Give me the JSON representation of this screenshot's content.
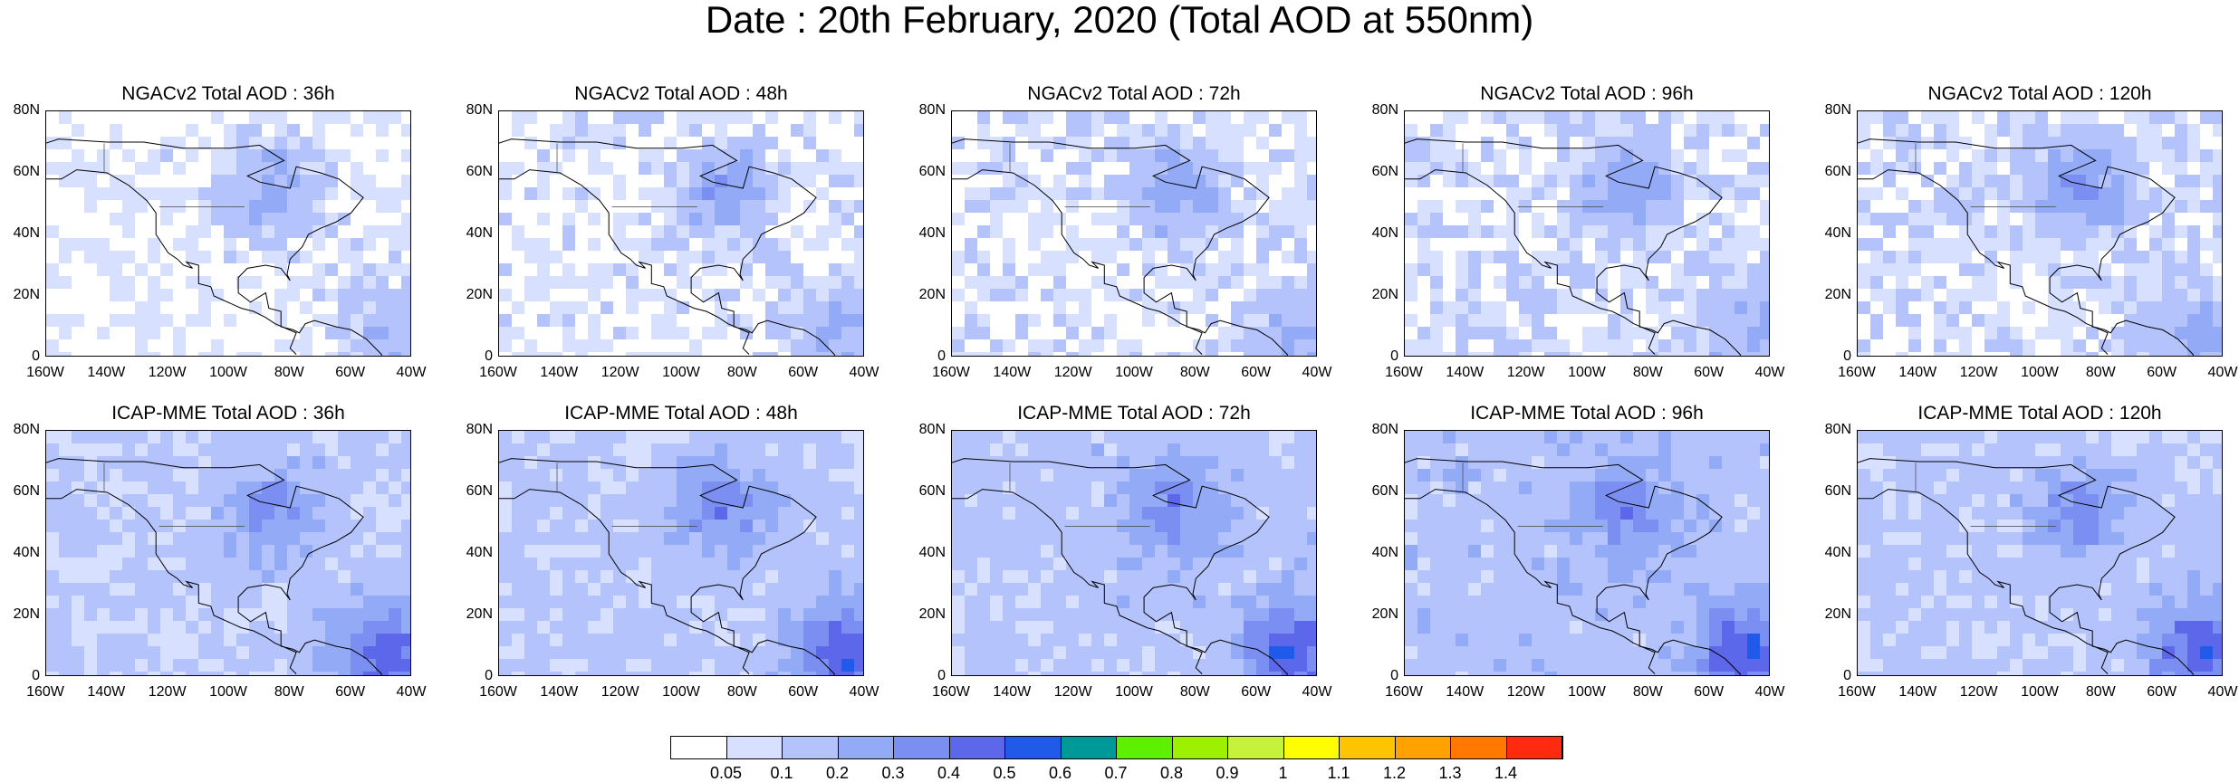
{
  "title": "Date : 20th February, 2020 (Total AOD at 550nm)",
  "panels": [
    {
      "title": "NGACv2 Total AOD : 36h",
      "model": "NGACv2",
      "lead": "36h",
      "bg": 0.04
    },
    {
      "title": "NGACv2 Total AOD : 48h",
      "model": "NGACv2",
      "lead": "48h",
      "bg": 0.05
    },
    {
      "title": "NGACv2 Total AOD : 72h",
      "model": "NGACv2",
      "lead": "72h",
      "bg": 0.06
    },
    {
      "title": "NGACv2 Total AOD : 96h",
      "model": "NGACv2",
      "lead": "96h",
      "bg": 0.07
    },
    {
      "title": "NGACv2 Total AOD : 120h",
      "model": "NGACv2",
      "lead": "120h",
      "bg": 0.07
    },
    {
      "title": "ICAP-MME Total AOD : 36h",
      "model": "ICAP-MME",
      "lead": "36h",
      "bg": 0.12
    },
    {
      "title": "ICAP-MME Total AOD : 48h",
      "model": "ICAP-MME",
      "lead": "48h",
      "bg": 0.13
    },
    {
      "title": "ICAP-MME Total AOD : 72h",
      "model": "ICAP-MME",
      "lead": "72h",
      "bg": 0.14
    },
    {
      "title": "ICAP-MME Total AOD : 96h",
      "model": "ICAP-MME",
      "lead": "96h",
      "bg": 0.15
    },
    {
      "title": "ICAP-MME Total AOD : 120h",
      "model": "ICAP-MME",
      "lead": "120h",
      "bg": 0.13
    }
  ],
  "lat_ticks": [
    "80N",
    "60N",
    "40N",
    "20N",
    "0"
  ],
  "lon_ticks": [
    "160W",
    "140W",
    "120W",
    "100W",
    "80W",
    "60W",
    "40W"
  ],
  "colorbar": {
    "colors": [
      "#ffffff",
      "#d7e0ff",
      "#b4c3fb",
      "#93aaf7",
      "#7b8ff2",
      "#5d67ea",
      "#1f5be8",
      "#009999",
      "#5df000",
      "#9cf000",
      "#c6f23b",
      "#fefe00",
      "#ffc400",
      "#ffa200",
      "#ff7800",
      "#ff2a10"
    ],
    "labels": [
      "0.05",
      "0.1",
      "0.2",
      "0.3",
      "0.4",
      "0.5",
      "0.6",
      "0.7",
      "0.8",
      "0.9",
      "1",
      "1.1",
      "1.2",
      "1.3",
      "1.4"
    ]
  }
}
